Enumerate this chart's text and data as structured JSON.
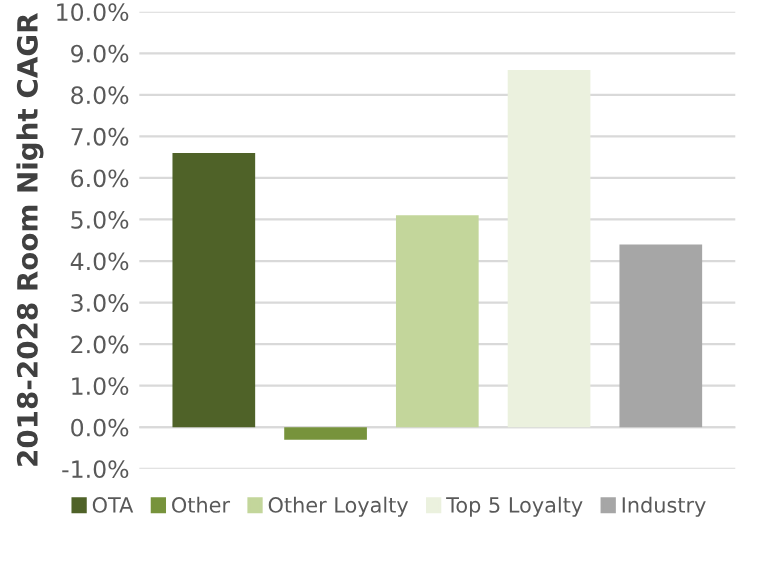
{
  "chart_data": {
    "type": "bar",
    "ylabel": "2018-2028 Room Night CAGR",
    "categories": [
      null
    ],
    "series": [
      {
        "name": "OTA",
        "color": "#4f6228",
        "values": [
          6.6
        ]
      },
      {
        "name": "Other",
        "color": "#77933c",
        "values": [
          -0.3
        ]
      },
      {
        "name": "Other Loyalty",
        "color": "#c3d69b",
        "values": [
          5.1
        ]
      },
      {
        "name": "Top 5 Loyalty",
        "color": "#ebf1de",
        "values": [
          8.6
        ]
      },
      {
        "name": "Industry",
        "color": "#a6a6a6",
        "values": [
          4.4
        ]
      }
    ],
    "ylim": [
      -1,
      10
    ],
    "yticks": [
      {
        "value": -1,
        "label": "-1.0%"
      },
      {
        "value": 0,
        "label": "0.0%"
      },
      {
        "value": 1,
        "label": "1.0%"
      },
      {
        "value": 2,
        "label": "2.0%"
      },
      {
        "value": 3,
        "label": "3.0%"
      },
      {
        "value": 4,
        "label": "4.0%"
      },
      {
        "value": 5,
        "label": "5.0%"
      },
      {
        "value": 6,
        "label": "6.0%"
      },
      {
        "value": 7,
        "label": "7.0%"
      },
      {
        "value": 8,
        "label": "8.0%"
      },
      {
        "value": 9,
        "label": "9.0%"
      },
      {
        "value": 10,
        "label": "10.0%"
      }
    ],
    "grid": "y",
    "legend": "bottom"
  }
}
